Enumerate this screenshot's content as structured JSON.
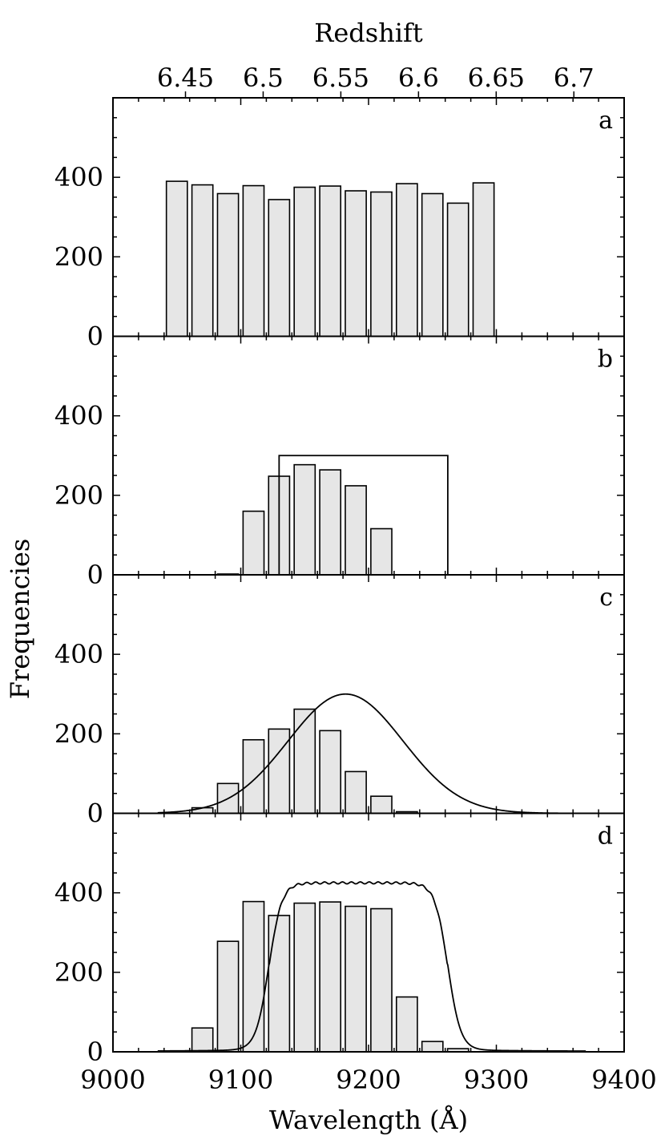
{
  "chart_data": {
    "type": "bar",
    "x_label": "Wavelength (Å)",
    "top_label": "Redshift",
    "y_label": "Frequencies",
    "xlim": [
      9000,
      9400
    ],
    "ylim": [
      0,
      600
    ],
    "x_ticks": [
      9000,
      9100,
      9200,
      9300,
      9400
    ],
    "x_tick_labels": [
      "9000",
      "9100",
      "9200",
      "9300",
      "9400"
    ],
    "y_ticks": [
      0,
      200,
      400
    ],
    "y_tick_labels": [
      "0",
      "200",
      "400"
    ],
    "redshift_ticks": [
      6.45,
      6.5,
      6.55,
      6.6,
      6.65,
      6.7
    ],
    "redshift_tick_labels": [
      "6.45",
      "6.5",
      "6.55",
      "6.6",
      "6.65",
      "6.7"
    ],
    "bin_width": 20,
    "panels": [
      {
        "label": "a",
        "bins": [
          {
            "center": 9050,
            "value": 390
          },
          {
            "center": 9070,
            "value": 381
          },
          {
            "center": 9090,
            "value": 359
          },
          {
            "center": 9110,
            "value": 379
          },
          {
            "center": 9130,
            "value": 344
          },
          {
            "center": 9150,
            "value": 375
          },
          {
            "center": 9170,
            "value": 378
          },
          {
            "center": 9190,
            "value": 366
          },
          {
            "center": 9210,
            "value": 363
          },
          {
            "center": 9230,
            "value": 384
          },
          {
            "center": 9250,
            "value": 359
          },
          {
            "center": 9270,
            "value": 335
          },
          {
            "center": 9290,
            "value": 386
          }
        ],
        "curve": null,
        "box": null
      },
      {
        "label": "b",
        "bins": [
          {
            "center": 9090,
            "value": 2
          },
          {
            "center": 9110,
            "value": 160
          },
          {
            "center": 9130,
            "value": 248
          },
          {
            "center": 9150,
            "value": 277
          },
          {
            "center": 9170,
            "value": 264
          },
          {
            "center": 9190,
            "value": 224
          },
          {
            "center": 9210,
            "value": 116
          }
        ],
        "curve": null,
        "box": {
          "x0": 9130,
          "x1": 9262,
          "height": 300
        }
      },
      {
        "label": "c",
        "bins": [
          {
            "center": 9070,
            "value": 14
          },
          {
            "center": 9090,
            "value": 75
          },
          {
            "center": 9110,
            "value": 185
          },
          {
            "center": 9130,
            "value": 212
          },
          {
            "center": 9150,
            "value": 262
          },
          {
            "center": 9170,
            "value": 208
          },
          {
            "center": 9190,
            "value": 105
          },
          {
            "center": 9210,
            "value": 43
          },
          {
            "center": 9230,
            "value": 4
          }
        ],
        "curve": {
          "kind": "gaussian",
          "center": 9182,
          "sigma": 45,
          "amplitude": 300,
          "x_start": 9035,
          "x_end": 9370
        },
        "box": null
      },
      {
        "label": "d",
        "bins": [
          {
            "center": 9070,
            "value": 60
          },
          {
            "center": 9090,
            "value": 278
          },
          {
            "center": 9110,
            "value": 378
          },
          {
            "center": 9130,
            "value": 343
          },
          {
            "center": 9150,
            "value": 374
          },
          {
            "center": 9170,
            "value": 377
          },
          {
            "center": 9190,
            "value": 366
          },
          {
            "center": 9210,
            "value": 360
          },
          {
            "center": 9230,
            "value": 138
          },
          {
            "center": 9250,
            "value": 26
          },
          {
            "center": 9270,
            "value": 8
          }
        ],
        "curve": {
          "kind": "tophat",
          "x0": 9122,
          "x1": 9262,
          "amplitude": 425,
          "edge_scale": 5,
          "wing_floor": 6,
          "x_start": 9035,
          "x_end": 9370
        },
        "box": null
      }
    ]
  }
}
